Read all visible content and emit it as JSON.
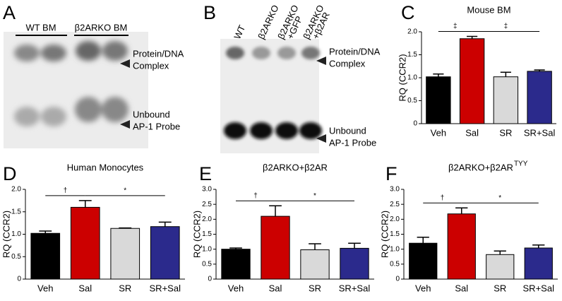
{
  "chart_data": [
    {
      "type": "bar",
      "panel": "C",
      "title": "Mouse BM",
      "y_label": "RQ (CCR2)",
      "categories": [
        "Veh",
        "Sal",
        "SR",
        "SR+Sal"
      ],
      "values": [
        1.02,
        1.85,
        1.02,
        1.14
      ],
      "errors": [
        0.06,
        0.05,
        0.1,
        0.03
      ],
      "colors": [
        "#000000",
        "#cc0000",
        "#d9d9d9",
        "#2b2a8c"
      ],
      "ylim": [
        0,
        2
      ],
      "yticks": [
        0,
        0.5,
        {
          "value": 1,
          "label": "1.0"
        },
        1.5,
        {
          "value": 2,
          "label": "2.0"
        }
      ],
      "annotations": [
        "‡",
        "‡"
      ]
    },
    {
      "type": "bar",
      "panel": "D",
      "title": "Human Monocytes",
      "y_label": "RQ (CCR2)",
      "categories": [
        "Veh",
        "Sal",
        "SR",
        "SR+Sal"
      ],
      "values": [
        1.02,
        1.6,
        1.13,
        1.17
      ],
      "errors": [
        0.05,
        0.15,
        0.01,
        0.1
      ],
      "colors": [
        "#000000",
        "#cc0000",
        "#d9d9d9",
        "#2b2a8c"
      ],
      "ylim": [
        0,
        2
      ],
      "yticks": [
        0,
        0.5,
        {
          "value": 1,
          "label": "1.0"
        },
        1.5,
        {
          "value": 2,
          "label": "2.0"
        }
      ],
      "annotations": [
        "†",
        "*"
      ]
    },
    {
      "type": "bar",
      "panel": "E",
      "title": "β2ARKO+β2AR",
      "y_label": "RQ (CCR2)",
      "categories": [
        "Veh",
        "Sal",
        "SR",
        "SR+Sal"
      ],
      "values": [
        1.0,
        2.1,
        0.98,
        1.03
      ],
      "errors": [
        0.04,
        0.35,
        0.2,
        0.17
      ],
      "colors": [
        "#000000",
        "#cc0000",
        "#d9d9d9",
        "#2b2a8c"
      ],
      "ylim": [
        0,
        3
      ],
      "yticks": [
        0,
        0.5,
        {
          "value": 1,
          "label": "1.0"
        },
        1.5,
        {
          "value": 2,
          "label": "2.0"
        },
        2.5,
        {
          "value": 3,
          "label": "3.0"
        }
      ],
      "annotations": [
        "†",
        "*"
      ]
    },
    {
      "type": "bar",
      "panel": "F",
      "title": "β2ARKO+β2AR",
      "title_superscript": "TYY",
      "y_label": "RQ (CCR2)",
      "categories": [
        "Veh",
        "Sal",
        "SR",
        "SR+Sal"
      ],
      "values": [
        1.2,
        2.18,
        0.82,
        1.04
      ],
      "errors": [
        0.2,
        0.2,
        0.12,
        0.1
      ],
      "colors": [
        "#000000",
        "#cc0000",
        "#d9d9d9",
        "#2b2a8c"
      ],
      "ylim": [
        0,
        3
      ],
      "yticks": [
        0,
        0.5,
        {
          "value": 1,
          "label": "1.0"
        },
        1.5,
        {
          "value": 2,
          "label": "2.0"
        },
        2.5,
        {
          "value": 3,
          "label": "3.0"
        }
      ],
      "annotations": [
        "†",
        "*"
      ]
    }
  ],
  "gels": [
    {
      "panel": "A",
      "lanes": [
        [
          "WT BM"
        ],
        [
          "β2ARKO BM"
        ]
      ],
      "bands": [
        [
          "Protein/DNA",
          "Complex"
        ],
        [
          "Unbound",
          "AP-1 Probe"
        ]
      ]
    },
    {
      "panel": "B",
      "lanes": [
        [
          "WT"
        ],
        [
          "β2ARKO"
        ],
        [
          "β2ARKO",
          "+GFP"
        ],
        [
          "β2ARKO",
          "+β2AR"
        ]
      ],
      "bands": [
        [
          "Protein/DNA",
          "Complex"
        ],
        [
          "Unbound",
          "AP-1 Probe"
        ]
      ]
    }
  ]
}
